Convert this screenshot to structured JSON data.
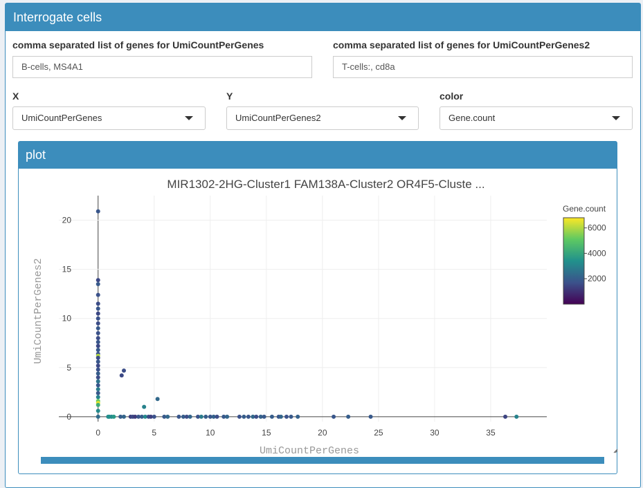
{
  "panel": {
    "title": "Interrogate cells"
  },
  "genes1": {
    "label": "comma separated list of genes for UmiCountPerGenes",
    "value": "B-cells, MS4A1"
  },
  "genes2": {
    "label": "comma separated list of genes for UmiCountPerGenes2",
    "value": "T-cells:, cd8a"
  },
  "x_select": {
    "label": "X",
    "value": "UmiCountPerGenes"
  },
  "y_select": {
    "label": "Y",
    "value": "UmiCountPerGenes2"
  },
  "color_select": {
    "label": "color",
    "value": "Gene.count"
  },
  "plot_panel": {
    "title": "plot"
  },
  "colors": {
    "accent": "#3c8dbc"
  },
  "chart_data": {
    "type": "scatter",
    "title": "MIR1302-2HG-Cluster1 FAM138A-Cluster2 OR4F5-Cluste ...",
    "xlabel": "UmiCountPerGenes",
    "ylabel": "UmiCountPerGenes2",
    "xlim": [
      -3.5,
      40
    ],
    "ylim": [
      -0.5,
      22.5
    ],
    "xticks": [
      0,
      5,
      10,
      15,
      20,
      25,
      30,
      35
    ],
    "yticks": [
      0,
      5,
      10,
      15,
      20
    ],
    "colorbar": {
      "title": "Gene.count",
      "ticks": [
        2000,
        4000,
        6000
      ],
      "range": [
        0,
        6800
      ],
      "colorscale": "viridis"
    },
    "points": [
      {
        "x": 0,
        "y": 20.9,
        "c": 1800
      },
      {
        "x": 0,
        "y": 13.9,
        "c": 1500
      },
      {
        "x": 0,
        "y": 13.5,
        "c": 1900
      },
      {
        "x": 0,
        "y": 12.4,
        "c": 1700
      },
      {
        "x": 0,
        "y": 11.5,
        "c": 1600
      },
      {
        "x": 0,
        "y": 11.0,
        "c": 1800
      },
      {
        "x": 0,
        "y": 10.5,
        "c": 1500
      },
      {
        "x": 0,
        "y": 10.0,
        "c": 1700
      },
      {
        "x": 0,
        "y": 9.5,
        "c": 1600
      },
      {
        "x": 0,
        "y": 9.0,
        "c": 1900
      },
      {
        "x": 0,
        "y": 8.5,
        "c": 1700
      },
      {
        "x": 0,
        "y": 8.0,
        "c": 1600
      },
      {
        "x": 0,
        "y": 7.6,
        "c": 1800
      },
      {
        "x": 0,
        "y": 7.2,
        "c": 1500
      },
      {
        "x": 0,
        "y": 6.8,
        "c": 1900
      },
      {
        "x": 0,
        "y": 6.4,
        "c": 1700
      },
      {
        "x": 0,
        "y": 6.2,
        "c": 6000
      },
      {
        "x": 0,
        "y": 6.0,
        "c": 1600
      },
      {
        "x": 0,
        "y": 5.6,
        "c": 1800
      },
      {
        "x": 0,
        "y": 5.2,
        "c": 1500
      },
      {
        "x": 0,
        "y": 4.8,
        "c": 1700
      },
      {
        "x": 0,
        "y": 4.4,
        "c": 2000
      },
      {
        "x": 0,
        "y": 4.0,
        "c": 1600
      },
      {
        "x": 0,
        "y": 3.6,
        "c": 2600
      },
      {
        "x": 0,
        "y": 3.2,
        "c": 1800
      },
      {
        "x": 0,
        "y": 2.8,
        "c": 2800
      },
      {
        "x": 0,
        "y": 2.4,
        "c": 1900
      },
      {
        "x": 0,
        "y": 2.0,
        "c": 3000
      },
      {
        "x": 0,
        "y": 1.6,
        "c": 5200
      },
      {
        "x": 0,
        "y": 1.4,
        "c": 6500
      },
      {
        "x": 0,
        "y": 1.2,
        "c": 4200
      },
      {
        "x": 0,
        "y": 0.6,
        "c": 3200
      },
      {
        "x": 0,
        "y": 0,
        "c": 2400
      },
      {
        "x": 2.1,
        "y": 4.2,
        "c": 1500
      },
      {
        "x": 2.3,
        "y": 4.7,
        "c": 1600
      },
      {
        "x": 4.1,
        "y": 1.0,
        "c": 3000
      },
      {
        "x": 5.3,
        "y": 1.8,
        "c": 2300
      },
      {
        "x": 0.9,
        "y": 0,
        "c": 3200
      },
      {
        "x": 1.0,
        "y": 0,
        "c": 3400
      },
      {
        "x": 1.2,
        "y": 0,
        "c": 3200
      },
      {
        "x": 1.4,
        "y": 0,
        "c": 3600
      },
      {
        "x": 2.0,
        "y": 0,
        "c": 2000
      },
      {
        "x": 2.3,
        "y": 0,
        "c": 2200
      },
      {
        "x": 2.9,
        "y": 0,
        "c": 1300
      },
      {
        "x": 3.1,
        "y": 0,
        "c": 1500
      },
      {
        "x": 3.3,
        "y": 0,
        "c": 1200
      },
      {
        "x": 3.6,
        "y": 0,
        "c": 1800
      },
      {
        "x": 3.9,
        "y": 0,
        "c": 2000
      },
      {
        "x": 4.2,
        "y": 0,
        "c": 3200
      },
      {
        "x": 4.5,
        "y": 0,
        "c": 1600
      },
      {
        "x": 4.7,
        "y": 0,
        "c": 1300
      },
      {
        "x": 5.0,
        "y": 0,
        "c": 1700
      },
      {
        "x": 5.9,
        "y": 0,
        "c": 1900
      },
      {
        "x": 6.2,
        "y": 0,
        "c": 2300
      },
      {
        "x": 7.2,
        "y": 0,
        "c": 1800
      },
      {
        "x": 7.6,
        "y": 0,
        "c": 2000
      },
      {
        "x": 7.9,
        "y": 0,
        "c": 1600
      },
      {
        "x": 8.2,
        "y": 0,
        "c": 2200
      },
      {
        "x": 8.9,
        "y": 0,
        "c": 1700
      },
      {
        "x": 9.2,
        "y": 0,
        "c": 2800
      },
      {
        "x": 9.6,
        "y": 0,
        "c": 2000
      },
      {
        "x": 10.0,
        "y": 0,
        "c": 1800
      },
      {
        "x": 10.3,
        "y": 0,
        "c": 2100
      },
      {
        "x": 10.6,
        "y": 0,
        "c": 1600
      },
      {
        "x": 11.2,
        "y": 0,
        "c": 1900
      },
      {
        "x": 11.5,
        "y": 0,
        "c": 2200
      },
      {
        "x": 12.6,
        "y": 0,
        "c": 1700
      },
      {
        "x": 13.0,
        "y": 0,
        "c": 2000
      },
      {
        "x": 13.4,
        "y": 0,
        "c": 1800
      },
      {
        "x": 13.8,
        "y": 0,
        "c": 2300
      },
      {
        "x": 14.1,
        "y": 0,
        "c": 1600
      },
      {
        "x": 14.5,
        "y": 0,
        "c": 2100
      },
      {
        "x": 14.8,
        "y": 0,
        "c": 1900
      },
      {
        "x": 15.5,
        "y": 0,
        "c": 2000
      },
      {
        "x": 16.1,
        "y": 0,
        "c": 1800
      },
      {
        "x": 16.3,
        "y": 0,
        "c": 2200
      },
      {
        "x": 16.8,
        "y": 0,
        "c": 1700
      },
      {
        "x": 17.2,
        "y": 0,
        "c": 1900
      },
      {
        "x": 17.8,
        "y": 0,
        "c": 2100
      },
      {
        "x": 21.0,
        "y": 0,
        "c": 1800
      },
      {
        "x": 22.3,
        "y": 0,
        "c": 2000
      },
      {
        "x": 24.3,
        "y": 0,
        "c": 1900
      },
      {
        "x": 36.3,
        "y": 0,
        "c": 1400
      },
      {
        "x": 37.3,
        "y": 0,
        "c": 3000
      }
    ]
  }
}
